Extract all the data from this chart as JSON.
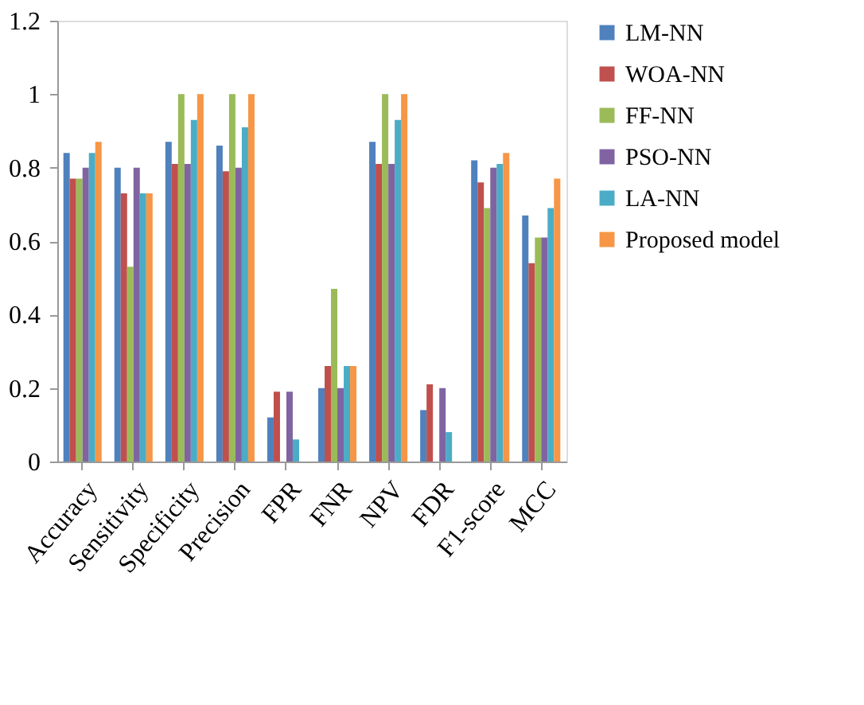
{
  "chart_data": {
    "type": "bar",
    "categories": [
      "Accuracy",
      "Sensitivity",
      "Specificity",
      "Precision",
      "FPR",
      "FNR",
      "NPV",
      "FDR",
      "F1-score",
      "MCC"
    ],
    "series": [
      {
        "name": "LM-NN",
        "color": "#4f81bd",
        "values": [
          0.84,
          0.8,
          0.87,
          0.86,
          0.12,
          0.2,
          0.87,
          0.14,
          0.82,
          0.67
        ]
      },
      {
        "name": "WOA-NN",
        "color": "#c0504d",
        "values": [
          0.77,
          0.73,
          0.81,
          0.79,
          0.19,
          0.26,
          0.81,
          0.21,
          0.76,
          0.54
        ]
      },
      {
        "name": "FF-NN",
        "color": "#9bbb59",
        "values": [
          0.77,
          0.53,
          1,
          1,
          0,
          0.47,
          1,
          0,
          0.69,
          0.61
        ]
      },
      {
        "name": "PSO-NN",
        "color": "#8064a2",
        "values": [
          0.8,
          0.8,
          0.81,
          0.8,
          0.19,
          0.2,
          0.81,
          0.2,
          0.8,
          0.61
        ]
      },
      {
        "name": "LA-NN",
        "color": "#4bacc6",
        "values": [
          0.84,
          0.73,
          0.93,
          0.91,
          0.06,
          0.26,
          0.93,
          0.08,
          0.81,
          0.69
        ]
      },
      {
        "name": "Proposed model",
        "color": "#f79646",
        "values": [
          0.87,
          0.73,
          1,
          1,
          0,
          0.26,
          1,
          0,
          0.84,
          0.77
        ]
      }
    ],
    "ylim": [
      0,
      1.2
    ],
    "yticks": [
      0,
      0.2,
      0.4,
      0.6,
      0.8,
      1,
      1.2
    ],
    "grid": false,
    "legend": "right"
  }
}
